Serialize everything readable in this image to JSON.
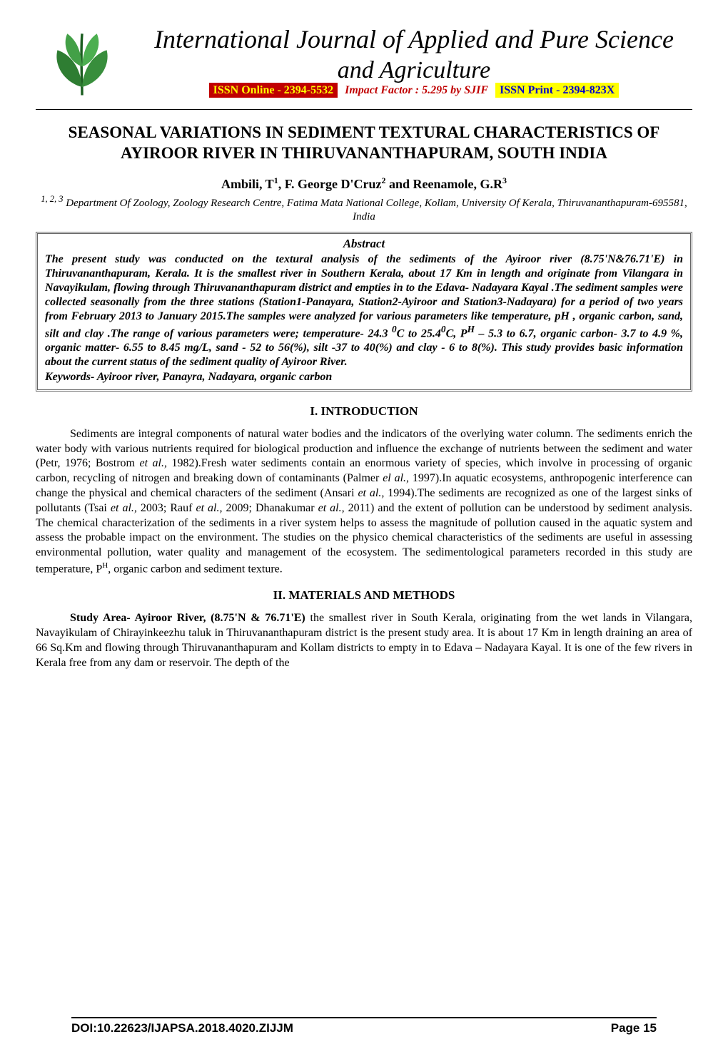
{
  "header": {
    "journal_line1": "International Journal of Applied and Pure Science",
    "journal_line2": "and Agriculture",
    "issn_online": "ISSN Online - 2394-5532",
    "impact_factor": "Impact Factor : 5.295  by SJIF",
    "issn_print": "ISSN Print - 2394-823X"
  },
  "logo": {
    "leaf_color": "#2e7d32",
    "stem_color": "#1b5e20",
    "background": "#ffffff"
  },
  "paper": {
    "title": "SEASONAL VARIATIONS IN SEDIMENT TEXTURAL CHARACTERISTICS OF AYIROOR RIVER IN THIRUVANANTHAPURAM, SOUTH INDIA",
    "authors_html": "Ambili, T<sup>1</sup>, F. George D'Cruz<sup>2</sup> and Reenamole, G.R<sup>3</sup>",
    "affiliation_sup": "1, 2, 3",
    "affiliation": "Department Of Zoology, Zoology Research Centre, Fatima Mata National College, Kollam, University Of Kerala, Thiruvananthapuram-695581, India"
  },
  "abstract": {
    "heading": "Abstract",
    "body_html": "The present study was conducted on the textural  analysis of the sediments of the Ayiroor river (8.75'N&76.71'E)  in  Thiruvananthapuram,  Kerala. It is the smallest river in Southern Kerala,  about 17 Km in length and originate from Vilangara in Navayikulam, flowing through Thiruvananthapuram district   and empties in to the Edava- Nadayara Kayal .The  sediment samples  were  collected  seasonally  from the three stations (Station1-Panayara, Station2-Ayiroor and Station3-Nadayara)   for a period of two years from February 2013 to January 2015.The samples were analyzed for various  parameters  like  temperature, pH , organic carbon, sand, silt and clay .The  range  of   various  parameters  were; temperature- 24.3 <sup>0</sup>C to 25.4<sup>0</sup>C, P<sup>H</sup> – 5.3 to 6.7, organic carbon- 3.7 to 4.9 %, organic matter-  6.55 to 8.45 mg/L, sand - 52 to 56(%), silt -37 to 40(%)  and  clay - 6 to 8(%). This study  provides basic information about the current status of the sediment   quality of Ayiroor River.",
    "keywords": "Keywords- Ayiroor river, Panayra, Nadayara, organic carbon"
  },
  "sections": {
    "intro_heading": "I. INTRODUCTION",
    "intro_body_html": "Sediments are integral components of natural water bodies and the indicators of the overlying water column. The sediments enrich the water body with various nutrients required for biological production and influence the exchange of nutrients between the sediment and water (Petr, 1976; Bostrom <i>et al.,</i> 1982).Fresh water  sediments  contain  an  enormous variety of  species, which involve in processing of organic carbon,  recycling of nitrogen and breaking down of contaminants (Palmer <i>el al.,</i> 1997).In aquatic ecosystems, anthropogenic interference can change the physical and chemical characters of the sediment (Ansari <i>et al.,</i> 1994).The sediments  are  recognized  as  one  of  the  largest  sinks  of  pollutants (Tsai <i>et al.,</i> 2003; Rauf <i>et al.,</i> 2009; Dhanakumar <i>et al.,</i> 2011) and the extent  of pollution can be  understood  by sediment  analysis. The chemical characterization of the sediments in a river system helps to assess the magnitude of pollution caused in the aquatic system and assess the probable impact on the environment. The studies on the physico chemical characteristics of the sediments   are useful in assessing environmental pollution, water quality and management of the ecosystem. The sedimentological parameters recorded in this study are temperature, P<sup>H</sup>, organic carbon and sediment texture.",
    "methods_heading": "II. MATERIALS AND METHODS",
    "methods_body_html": "<b>Study Area- Ayiroor River, (8.75'N & 76.71'E)</b> the smallest river in South Kerala, originating from the wet lands in Vilangara, Navayikulam of Chirayinkeezhu taluk in Thiruvananthapuram district is the present study area. It is about 17 Km in length draining  an area of 66 Sq.Km and flowing through Thiruvananthapuram and Kollam districts  to empty in to Edava – Nadayara Kayal. It is one of the few rivers in Kerala free from any dam or reservoir. The depth of the"
  },
  "footer": {
    "doi": "DOI:10.22623/IJAPSA.2018.4020.ZIJJM",
    "page": "Page 15"
  },
  "colors": {
    "issn_online_bg": "#c00000",
    "issn_online_fg": "#ffff00",
    "impact_fg": "#c00000",
    "issn_print_bg": "#ffff00",
    "issn_print_fg": "#0000cc",
    "rule": "#000000",
    "abstract_border": "#666666",
    "text": "#000000",
    "page_bg": "#ffffff"
  }
}
